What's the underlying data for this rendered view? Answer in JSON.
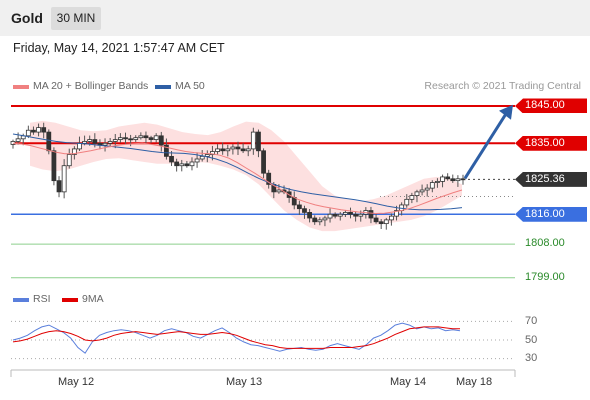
{
  "header": {
    "symbol": "Gold",
    "interval": "30 MIN"
  },
  "timestamp": "Friday, May 14, 2021 1:57:47 AM CET",
  "legend": {
    "bb_label": "MA 20 + Bollinger Bands",
    "ma50_label": "MA 50",
    "bb_color": "#f08080",
    "ma50_color": "#2e5fa5"
  },
  "credit": "Research © 2021 Trading Central",
  "colors": {
    "resistance": "#e00000",
    "support": "#3a6fe0",
    "secondary": "#2a8a2a",
    "arrow": "#2e5fa5",
    "rsi": "#5a7fdc",
    "rsi_ma": "#e00000",
    "candle": "#555555"
  },
  "chart_data": [
    {
      "type": "candlestick",
      "title": "Gold",
      "ylim": [
        1796,
        1849
      ],
      "x_labels": [
        "May 12",
        "May 13",
        "May 14",
        "May 18"
      ],
      "levels": [
        {
          "label": "1845.00",
          "value": 1845.0,
          "style": "resistance"
        },
        {
          "label": "1835.00",
          "value": 1835.0,
          "style": "resistance"
        },
        {
          "label": "1825.36",
          "value": 1825.36,
          "style": "last"
        },
        {
          "label": "1816.00",
          "value": 1816.0,
          "style": "support"
        },
        {
          "label": "1808.00",
          "value": 1808.0,
          "style": "secondary"
        },
        {
          "label": "1799.00",
          "value": 1799.0,
          "style": "secondary"
        }
      ],
      "close_series": [
        1835.5,
        1836.2,
        1837.0,
        1838.5,
        1838.0,
        1839.2,
        1838.0,
        1833.0,
        1825.0,
        1822.0,
        1829.0,
        1832.0,
        1833.5,
        1835.0,
        1835.5,
        1836.0,
        1835.0,
        1834.5,
        1835.0,
        1835.5,
        1836.0,
        1836.5,
        1836.2,
        1836.0,
        1836.5,
        1837.0,
        1836.5,
        1836.0,
        1837.0,
        1834.5,
        1831.5,
        1830.0,
        1829.0,
        1829.5,
        1829.0,
        1830.0,
        1830.8,
        1831.5,
        1832.0,
        1832.8,
        1833.5,
        1833.0,
        1833.5,
        1834.0,
        1833.5,
        1833.0,
        1833.5,
        1838.0,
        1833.0,
        1827.0,
        1824.0,
        1822.0,
        1822.5,
        1822.0,
        1820.5,
        1818.5,
        1817.5,
        1816.5,
        1815.0,
        1814.0,
        1814.5,
        1815.0,
        1816.0,
        1815.5,
        1816.0,
        1816.5,
        1816.0,
        1815.5,
        1816.0,
        1817.0,
        1815.0,
        1814.0,
        1813.5,
        1814.5,
        1815.5,
        1817.0,
        1818.5,
        1820.0,
        1821.0,
        1822.0,
        1822.5,
        1823.0,
        1824.5,
        1824.8,
        1826.0,
        1825.5,
        1825.0,
        1825.5,
        1825.36
      ],
      "ma20_series": [
        1835.0,
        1834.8,
        1834.4,
        1833.8,
        1833.2,
        1832.6,
        1832.2,
        1832.2,
        1832.6,
        1833.0,
        1833.5,
        1834.0,
        1834.4,
        1834.7,
        1834.9,
        1835.0,
        1834.7,
        1834.3,
        1833.8,
        1833.3,
        1832.8,
        1832.5,
        1832.3,
        1832.2,
        1831.8,
        1831.0,
        1829.8,
        1828.4,
        1827.0,
        1825.5,
        1824.0,
        1822.6,
        1821.2,
        1820.0,
        1819.2,
        1818.5,
        1818.0,
        1817.6,
        1817.2,
        1816.9,
        1816.6,
        1816.4,
        1816.2,
        1816.3,
        1816.6,
        1817.0,
        1817.6,
        1818.4,
        1819.3,
        1820.2,
        1821.0,
        1821.8,
        1822.5
      ],
      "ma50_series": [
        1837.5,
        1837.0,
        1836.5,
        1836.0,
        1835.5,
        1835.2,
        1835.0,
        1834.8,
        1834.5,
        1834.2,
        1833.9,
        1833.6,
        1833.2,
        1832.8,
        1832.5,
        1832.4,
        1832.3,
        1832.0,
        1831.5,
        1830.8,
        1829.8,
        1828.5,
        1827.0,
        1825.6,
        1824.4,
        1823.4,
        1822.6,
        1822.0,
        1821.5,
        1821.1,
        1820.7,
        1820.3,
        1819.9,
        1819.4,
        1818.8,
        1818.2,
        1817.7,
        1817.4,
        1817.2,
        1817.2,
        1817.3,
        1817.5,
        1817.8
      ],
      "bb_upper": [
        1840.5,
        1841.0,
        1840.5,
        1839.5,
        1838.5,
        1838.2,
        1838.5,
        1839.5,
        1840.0,
        1840.5,
        1840.0,
        1839.0,
        1838.0,
        1837.5,
        1837.2,
        1838.0,
        1839.5,
        1840.8,
        1840.5,
        1838.5,
        1835.5,
        1831.5,
        1827.5,
        1823.5,
        1821.0,
        1820.0,
        1819.5,
        1820.0,
        1821.0,
        1822.5,
        1824.0,
        1825.5,
        1826.0,
        1825.5,
        1824.0
      ],
      "bb_lower": [
        1829.0,
        1828.0,
        1827.5,
        1828.0,
        1829.0,
        1830.0,
        1830.8,
        1831.0,
        1830.5,
        1830.0,
        1829.5,
        1829.5,
        1829.8,
        1830.0,
        1829.8,
        1829.0,
        1828.0,
        1826.5,
        1824.0,
        1820.5,
        1817.0,
        1814.5,
        1812.5,
        1811.5,
        1811.5,
        1812.0,
        1812.5,
        1813.0,
        1813.5,
        1814.0,
        1814.5,
        1815.5,
        1817.0,
        1819.0,
        1821.0
      ]
    },
    {
      "type": "line",
      "title": "RSI",
      "ylim": [
        20,
        80
      ],
      "y_ticks": [
        "70",
        "50",
        "30"
      ],
      "series": [
        {
          "name": "RSI",
          "values": [
            50,
            52,
            55,
            60,
            64,
            66,
            62,
            58,
            52,
            42,
            36,
            48,
            55,
            58,
            60,
            61,
            60,
            58,
            55,
            52,
            55,
            60,
            62,
            60,
            58,
            54,
            52,
            56,
            60,
            63,
            58,
            52,
            48,
            45,
            44,
            42,
            40,
            38,
            40,
            41,
            42,
            40,
            39,
            40,
            44,
            46,
            44,
            42,
            40,
            45,
            52,
            55,
            60,
            66,
            68,
            66,
            62,
            64,
            62,
            63,
            60,
            61,
            60
          ]
        },
        {
          "name": "9MA",
          "values": [
            48,
            49,
            51,
            54,
            57,
            59,
            60,
            59,
            57,
            54,
            50,
            49,
            50,
            52,
            55,
            57,
            58,
            59,
            58,
            57,
            56,
            57,
            58,
            59,
            58,
            57,
            56,
            56,
            57,
            58,
            57,
            55,
            52,
            49,
            47,
            45,
            44,
            42,
            41,
            41,
            41,
            41,
            41,
            41,
            42,
            42,
            42,
            42,
            43,
            44,
            46,
            49,
            52,
            56,
            59,
            62,
            63,
            64,
            64,
            64,
            63,
            62,
            62
          ]
        }
      ]
    }
  ]
}
